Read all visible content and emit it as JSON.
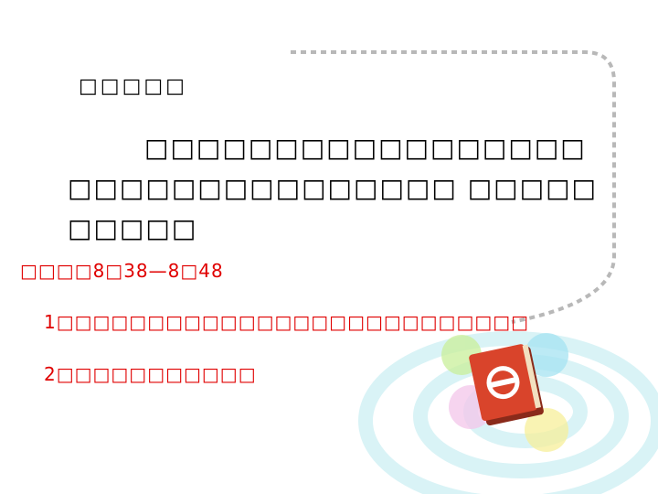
{
  "slide": {
    "heading": "□□□□□",
    "body": "□□□□□□□□□□□□□□□□□□□□□□□□□□□□□□□□ □□□□□□□□□□",
    "time": "□□□□8□38—8□48",
    "items": [
      "1□□□□□□□□□□□□□□□□□□□□□□□□□□",
      "2□□□□□□□□□□□"
    ]
  },
  "colors": {
    "body_text": "#000000",
    "accent_red": "#e00000",
    "dashed_border": "#b8b8b8",
    "swirl": "#d9f3f6",
    "book_red": "#d9442b"
  },
  "icons": {
    "decoration": "dashed-corner-border",
    "illustration": "book-icon"
  }
}
